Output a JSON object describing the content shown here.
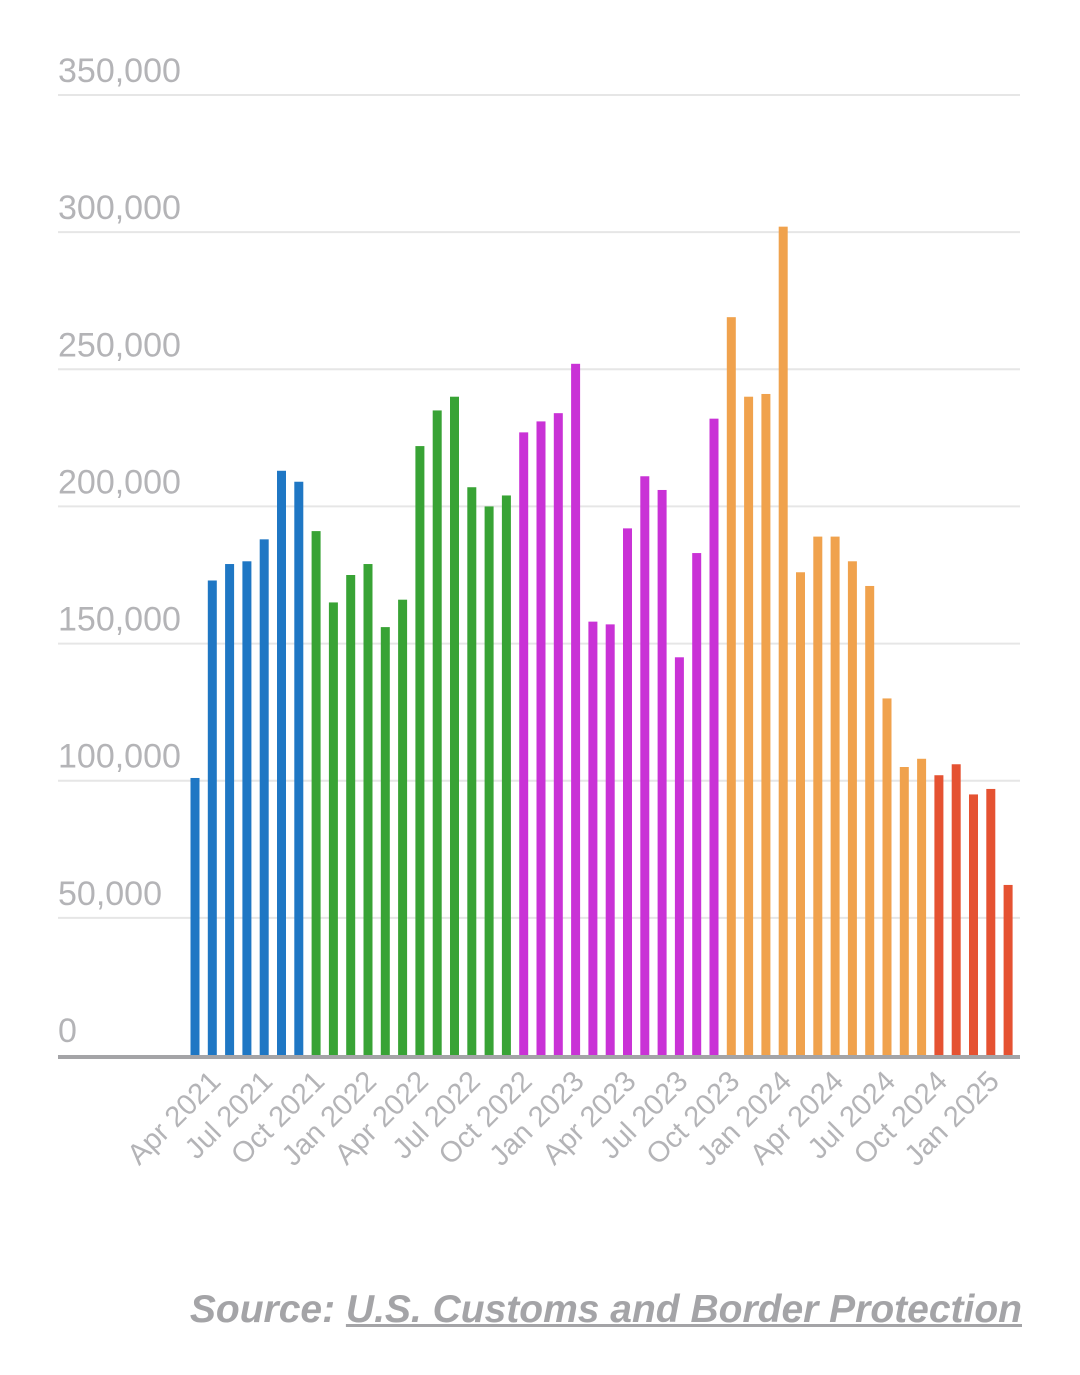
{
  "chart_data": {
    "type": "bar",
    "title": "",
    "xlabel": "",
    "ylabel": "",
    "ylim": [
      0,
      350000
    ],
    "yticks": [
      0,
      50000,
      100000,
      150000,
      200000,
      250000,
      300000,
      350000
    ],
    "ytick_labels": [
      "0",
      "50,000",
      "100,000",
      "150,000",
      "200,000",
      "250,000",
      "300,000",
      "350,000"
    ],
    "grid": true,
    "legend": "none",
    "categories": [
      "Mar 2021",
      "Apr 2021",
      "May 2021",
      "Jun 2021",
      "Jul 2021",
      "Aug 2021",
      "Sep 2021",
      "Oct 2021",
      "Nov 2021",
      "Dec 2021",
      "Jan 2022",
      "Feb 2022",
      "Mar 2022",
      "Apr 2022",
      "May 2022",
      "Jun 2022",
      "Jul 2022",
      "Aug 2022",
      "Sep 2022",
      "Oct 2022",
      "Nov 2022",
      "Dec 2022",
      "Jan 2023",
      "Feb 2023",
      "Mar 2023",
      "Apr 2023",
      "May 2023",
      "Jun 2023",
      "Jul 2023",
      "Aug 2023",
      "Sep 2023",
      "Oct 2023",
      "Nov 2023",
      "Dec 2023",
      "Jan 2024",
      "Feb 2024",
      "Mar 2024",
      "Apr 2024",
      "May 2024",
      "Jun 2024",
      "Jul 2024",
      "Aug 2024",
      "Sep 2024",
      "Oct 2024",
      "Nov 2024",
      "Dec 2024",
      "Jan 2025",
      "Feb 2025"
    ],
    "values": [
      101000,
      173000,
      179000,
      180000,
      188000,
      213000,
      209000,
      191000,
      165000,
      175000,
      179000,
      156000,
      166000,
      222000,
      235000,
      240000,
      207000,
      200000,
      204000,
      227000,
      231000,
      234000,
      252000,
      158000,
      157000,
      192000,
      211000,
      206000,
      145000,
      183000,
      232000,
      269000,
      240000,
      241000,
      302000,
      176000,
      189000,
      189000,
      180000,
      171000,
      130000,
      105000,
      108000,
      102000,
      106000,
      95000,
      97000,
      62000
    ],
    "colors": [
      "#1f77c4",
      "#1f77c4",
      "#1f77c4",
      "#1f77c4",
      "#1f77c4",
      "#1f77c4",
      "#1f77c4",
      "#38a335",
      "#38a335",
      "#38a335",
      "#38a335",
      "#38a335",
      "#38a335",
      "#38a335",
      "#38a335",
      "#38a335",
      "#38a335",
      "#38a335",
      "#38a335",
      "#c932d6",
      "#c932d6",
      "#c932d6",
      "#c932d6",
      "#c932d6",
      "#c932d6",
      "#c932d6",
      "#c932d6",
      "#c932d6",
      "#c932d6",
      "#c932d6",
      "#c932d6",
      "#f0a24d",
      "#f0a24d",
      "#f0a24d",
      "#f0a24d",
      "#f0a24d",
      "#f0a24d",
      "#f0a24d",
      "#f0a24d",
      "#f0a24d",
      "#f0a24d",
      "#f0a24d",
      "#f0a24d",
      "#e55232",
      "#e55232",
      "#e55232",
      "#e55232",
      "#e55232"
    ],
    "xtick_labels": [
      "Apr 2021",
      "Jul 2021",
      "Oct 2021",
      "Jan 2022",
      "Apr 2022",
      "Jul 2022",
      "Oct 2022",
      "Jan 2023",
      "Apr 2023",
      "Jul 2023",
      "Oct 2023",
      "Jan 2024",
      "Apr 2024",
      "Jul 2024",
      "Oct 2024",
      "Jan 2025"
    ],
    "xtick_positions": [
      "Apr 2021",
      "Jul 2021",
      "Oct 2021",
      "Jan 2022",
      "Apr 2022",
      "Jul 2022",
      "Oct 2022",
      "Jan 2023",
      "Apr 2023",
      "Jul 2023",
      "Oct 2023",
      "Jan 2024",
      "Apr 2024",
      "Jul 2024",
      "Oct 2024",
      "Jan 2025"
    ]
  },
  "source": {
    "prefix": "Source: ",
    "link_text": "U.S. Customs and Border Protection"
  },
  "colors": {
    "axis_text": "#b4b4b7",
    "gridline": "#e6e6e6",
    "baseline": "#a4a4a7"
  }
}
